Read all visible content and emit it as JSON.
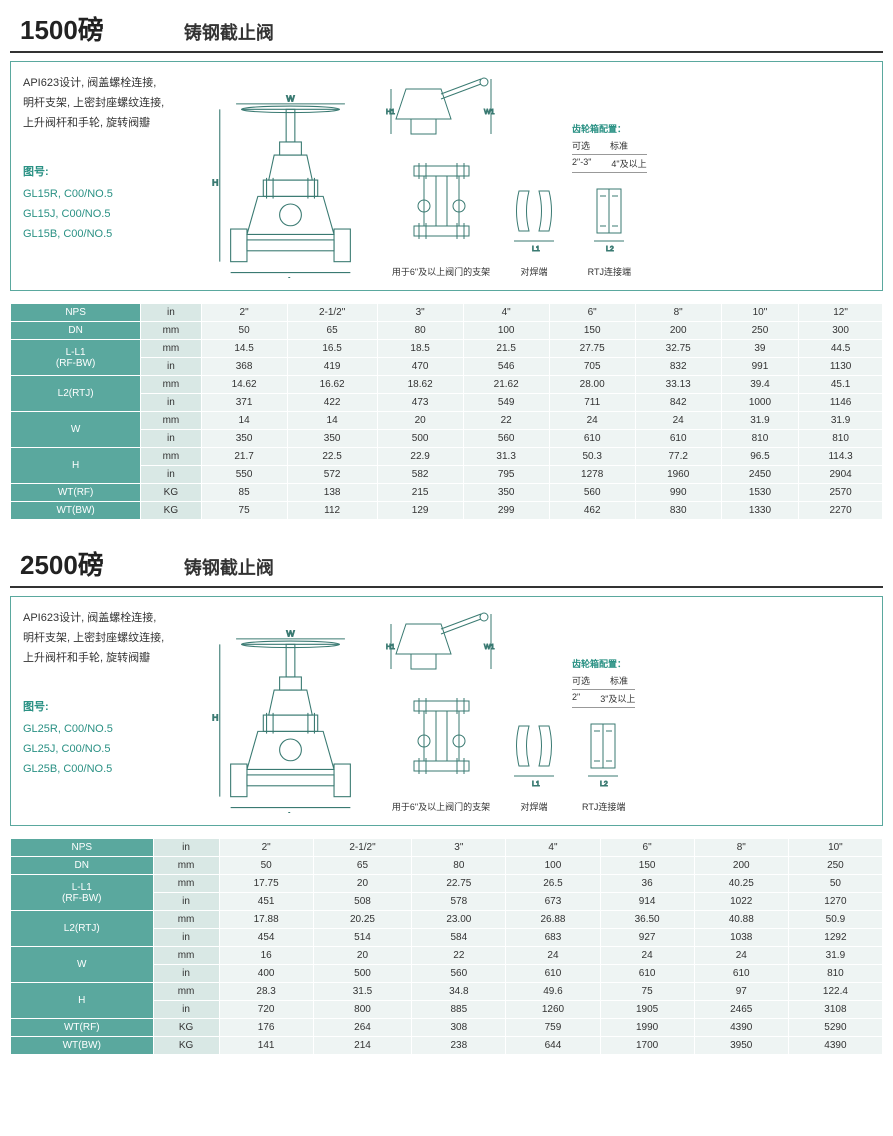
{
  "sections": [
    {
      "title": "1500磅",
      "subtitle": "铸钢截止阀",
      "desc": "API623设计, 阀盖螺栓连接,\n明杆支架, 上密封座螺纹连接,\n上升阀杆和手轮, 旋转阀瓣",
      "fig_label": "图号:",
      "codes": [
        "GL15R, C00/NO.5",
        "GL15J, C00/NO.5",
        "GL15B, C00/NO.5"
      ],
      "captions": [
        "",
        "用于6\"及以上阀门的支架",
        "对焊端",
        "RTJ连接端"
      ],
      "gear_title": "齿轮箱配置：",
      "gear_head": [
        "可选",
        "标准"
      ],
      "gear_vals": [
        "2\"-3\"",
        "4\"及以上"
      ],
      "table": {
        "headers": [
          "NPS",
          "DN",
          "L-L1\n(RF-BW)",
          "L2(RTJ)",
          "W",
          "H",
          "WT(RF)",
          "WT(BW)"
        ],
        "units": [
          "in",
          "mm",
          "in",
          "mm",
          "in",
          "mm",
          "in",
          "mm",
          "in",
          "mm",
          "KG",
          "KG"
        ],
        "cols": [
          "2\"",
          "2-1/2\"",
          "3\"",
          "4\"",
          "6\"",
          "8\"",
          "10\"",
          "12\""
        ],
        "rows": [
          [
            "50",
            "65",
            "80",
            "100",
            "150",
            "200",
            "250",
            "300"
          ],
          [
            "14.5",
            "16.5",
            "18.5",
            "21.5",
            "27.75",
            "32.75",
            "39",
            "44.5"
          ],
          [
            "368",
            "419",
            "470",
            "546",
            "705",
            "832",
            "991",
            "1130"
          ],
          [
            "14.62",
            "16.62",
            "18.62",
            "21.62",
            "28.00",
            "33.13",
            "39.4",
            "45.1"
          ],
          [
            "371",
            "422",
            "473",
            "549",
            "711",
            "842",
            "1000",
            "1146"
          ],
          [
            "14",
            "14",
            "20",
            "22",
            "24",
            "24",
            "31.9",
            "31.9"
          ],
          [
            "350",
            "350",
            "500",
            "560",
            "610",
            "610",
            "810",
            "810"
          ],
          [
            "21.7",
            "22.5",
            "22.9",
            "31.3",
            "50.3",
            "77.2",
            "96.5",
            "114.3"
          ],
          [
            "550",
            "572",
            "582",
            "795",
            "1278",
            "1960",
            "2450",
            "2904"
          ],
          [
            "85",
            "138",
            "215",
            "350",
            "560",
            "990",
            "1530",
            "2570"
          ],
          [
            "75",
            "112",
            "129",
            "299",
            "462",
            "830",
            "1330",
            "2270"
          ]
        ]
      }
    },
    {
      "title": "2500磅",
      "subtitle": "铸钢截止阀",
      "desc": "API623设计, 阀盖螺栓连接,\n明杆支架, 上密封座螺纹连接,\n上升阀杆和手轮, 旋转阀瓣",
      "fig_label": "图号:",
      "codes": [
        "GL25R, C00/NO.5",
        "GL25J, C00/NO.5",
        "GL25B, C00/NO.5"
      ],
      "captions": [
        "",
        "用于6\"及以上阀门的支架",
        "对焊端",
        "RTJ连接端"
      ],
      "gear_title": "齿轮箱配置：",
      "gear_head": [
        "可选",
        "标准"
      ],
      "gear_vals": [
        "2\"",
        "3\"及以上"
      ],
      "table": {
        "headers": [
          "NPS",
          "DN",
          "L-L1\n(RF-BW)",
          "L2(RTJ)",
          "W",
          "H",
          "WT(RF)",
          "WT(BW)"
        ],
        "units": [
          "in",
          "mm",
          "in",
          "mm",
          "in",
          "mm",
          "in",
          "mm",
          "in",
          "mm",
          "KG",
          "KG"
        ],
        "cols": [
          "2\"",
          "2-1/2\"",
          "3\"",
          "4\"",
          "6\"",
          "8\"",
          "10\""
        ],
        "rows": [
          [
            "50",
            "65",
            "80",
            "100",
            "150",
            "200",
            "250"
          ],
          [
            "17.75",
            "20",
            "22.75",
            "26.5",
            "36",
            "40.25",
            "50"
          ],
          [
            "451",
            "508",
            "578",
            "673",
            "914",
            "1022",
            "1270"
          ],
          [
            "17.88",
            "20.25",
            "23.00",
            "26.88",
            "36.50",
            "40.88",
            "50.9"
          ],
          [
            "454",
            "514",
            "584",
            "683",
            "927",
            "1038",
            "1292"
          ],
          [
            "16",
            "20",
            "22",
            "24",
            "24",
            "24",
            "31.9"
          ],
          [
            "400",
            "500",
            "560",
            "610",
            "610",
            "610",
            "810"
          ],
          [
            "28.3",
            "31.5",
            "34.8",
            "49.6",
            "75",
            "97",
            "122.4"
          ],
          [
            "720",
            "800",
            "885",
            "1260",
            "1905",
            "2465",
            "3108"
          ],
          [
            "176",
            "264",
            "308",
            "759",
            "1990",
            "4390",
            "5290"
          ],
          [
            "141",
            "214",
            "238",
            "644",
            "1700",
            "3950",
            "4390"
          ]
        ]
      }
    }
  ],
  "style": {
    "accent": "#5aa89e",
    "teal_text": "#2a9184",
    "row_light": "#eef4f3",
    "row_unit": "#d9e8e5"
  }
}
